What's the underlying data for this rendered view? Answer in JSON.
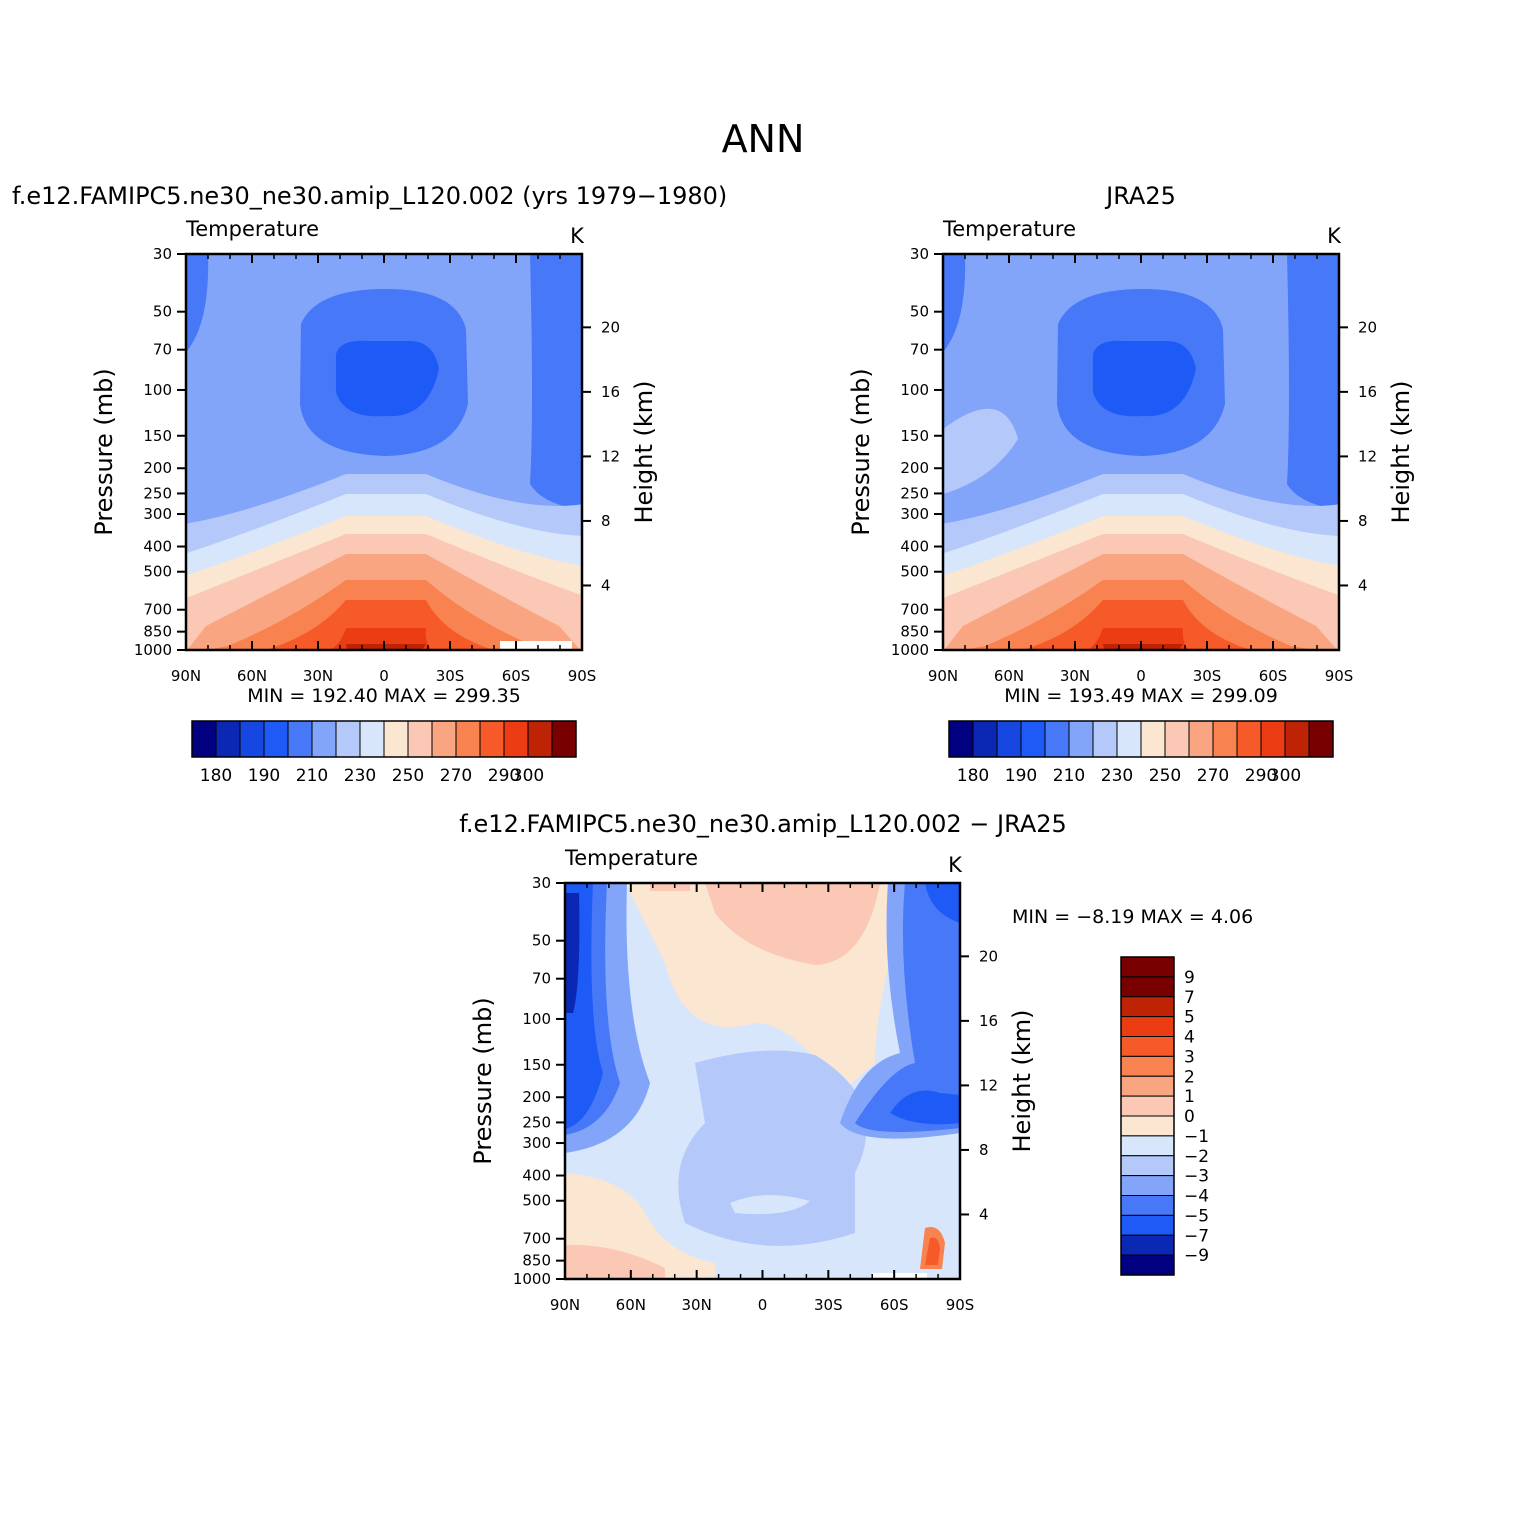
{
  "page_title": "ANN",
  "chart_data": [
    {
      "type": "contour",
      "title": "f.e12.FAMIPC5.ne30_ne30.amip_L120.002 (yrs 1979−1980)",
      "subtitle": "Temperature",
      "units": "K",
      "xlabel": "",
      "ylabel": "Pressure  (mb)",
      "y2label": "Height  (km)",
      "x_ticks": [
        "90N",
        "60N",
        "30N",
        "0",
        "30S",
        "60S",
        "90S"
      ],
      "x_values": [
        90,
        60,
        30,
        0,
        -30,
        -60,
        -90
      ],
      "y_ticks": [
        30,
        50,
        70,
        100,
        150,
        200,
        250,
        300,
        400,
        500,
        700,
        850,
        1000
      ],
      "y_scale": "log",
      "ylim": [
        1000,
        30
      ],
      "y2_ticks": [
        4,
        8,
        12,
        16,
        20
      ],
      "min_label": "MIN =  192.40   MAX =  299.35",
      "colorbar": {
        "orientation": "horizontal",
        "labels": [
          "180",
          "190",
          "210",
          "230",
          "250",
          "270",
          "290",
          "300"
        ],
        "colors": [
          "#000080",
          "#0a28b4",
          "#1648e1",
          "#1e5af6",
          "#4678f8",
          "#82a5fa",
          "#b4c8fa",
          "#d7e6fa",
          "#fbe6d2",
          "#fac8b4",
          "#faa582",
          "#f88250",
          "#f55a28",
          "#eb3c14",
          "#be2305",
          "#780000"
        ]
      }
    },
    {
      "type": "contour",
      "title": "JRA25",
      "subtitle": "Temperature",
      "units": "K",
      "xlabel": "",
      "ylabel": "Pressure  (mb)",
      "y2label": "Height  (km)",
      "x_ticks": [
        "90N",
        "60N",
        "30N",
        "0",
        "30S",
        "60S",
        "90S"
      ],
      "x_values": [
        90,
        60,
        30,
        0,
        -30,
        -60,
        -90
      ],
      "y_ticks": [
        30,
        50,
        70,
        100,
        150,
        200,
        250,
        300,
        400,
        500,
        700,
        850,
        1000
      ],
      "y_scale": "log",
      "ylim": [
        1000,
        30
      ],
      "y2_ticks": [
        4,
        8,
        12,
        16,
        20
      ],
      "min_label": "MIN =  193.49   MAX =  299.09",
      "colorbar": {
        "orientation": "horizontal",
        "labels": [
          "180",
          "190",
          "210",
          "230",
          "250",
          "270",
          "290",
          "300"
        ],
        "colors": [
          "#000080",
          "#0a28b4",
          "#1648e1",
          "#1e5af6",
          "#4678f8",
          "#82a5fa",
          "#b4c8fa",
          "#d7e6fa",
          "#fbe6d2",
          "#fac8b4",
          "#faa582",
          "#f88250",
          "#f55a28",
          "#eb3c14",
          "#be2305",
          "#780000"
        ]
      }
    },
    {
      "type": "contour",
      "title": "f.e12.FAMIPC5.ne30_ne30.amip_L120.002  −  JRA25",
      "subtitle": "Temperature",
      "units": "K",
      "xlabel": "",
      "ylabel": "Pressure  (mb)",
      "y2label": "Height  (km)",
      "x_ticks": [
        "90N",
        "60N",
        "30N",
        "0",
        "30S",
        "60S",
        "90S"
      ],
      "x_values": [
        90,
        60,
        30,
        0,
        -30,
        -60,
        -90
      ],
      "y_ticks": [
        30,
        50,
        70,
        100,
        150,
        200,
        250,
        300,
        400,
        500,
        700,
        850,
        1000
      ],
      "y_scale": "log",
      "ylim": [
        1000,
        30
      ],
      "y2_ticks": [
        4,
        8,
        12,
        16,
        20
      ],
      "min_label": "MIN =    −8.19   MAX =     4.06",
      "colorbar": {
        "orientation": "vertical",
        "labels": [
          "9",
          "7",
          "5",
          "4",
          "3",
          "2",
          "1",
          "0",
          "−1",
          "−2",
          "−3",
          "−4",
          "−5",
          "−7",
          "−9"
        ],
        "colors": [
          "#780000",
          "#be2305",
          "#eb3c14",
          "#f55a28",
          "#f88250",
          "#faa582",
          "#fac8b4",
          "#fbe6d2",
          "#d7e6fa",
          "#b4c8fa",
          "#82a5fa",
          "#4678f8",
          "#1e5af6",
          "#0a28b4",
          "#000080"
        ]
      }
    }
  ]
}
